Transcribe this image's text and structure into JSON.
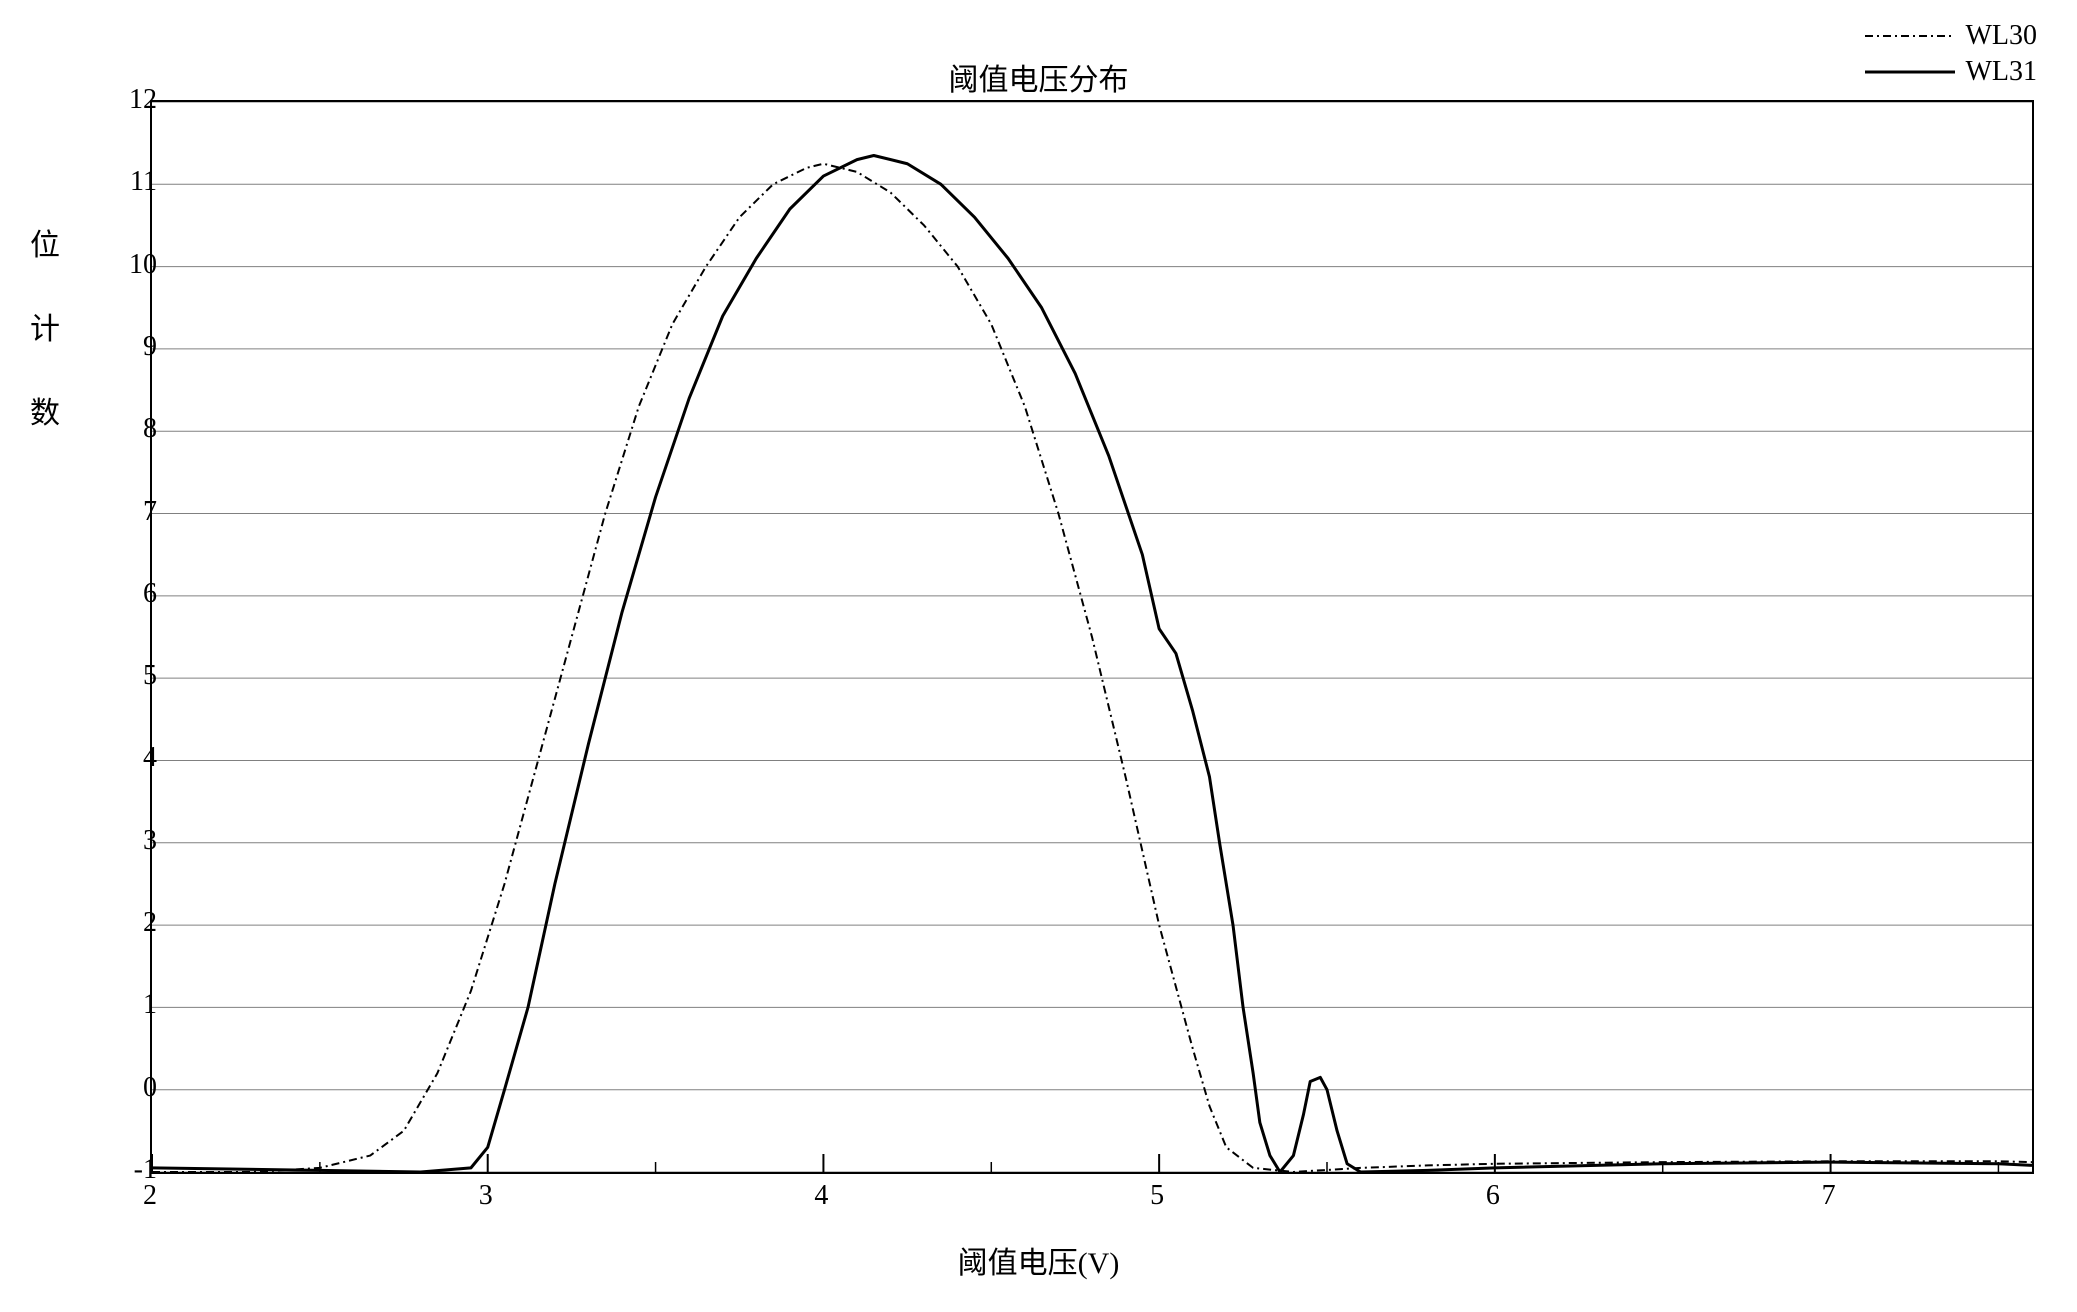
{
  "chart": {
    "type": "line",
    "title": "阈值电压分布",
    "xlabel": "阈值电压(V)",
    "ylabel_chars": [
      "位",
      "计",
      "数"
    ],
    "background_color": "#ffffff",
    "grid_color": "#808080",
    "border_color": "#000000",
    "title_fontsize": 30,
    "label_fontsize": 30,
    "tick_fontsize": 28,
    "xlim": [
      2,
      7.6
    ],
    "ylim": [
      -1,
      12
    ],
    "x_ticks": [
      2,
      3,
      4,
      5,
      6,
      7
    ],
    "y_ticks": [
      -1,
      0,
      1,
      2,
      3,
      4,
      5,
      6,
      7,
      8,
      9,
      10,
      11,
      12
    ],
    "x_minor_ticks": [
      2.5,
      3.5,
      4.5,
      5.5,
      6.5,
      7.5
    ],
    "series": [
      {
        "name": "WL30",
        "color": "#000000",
        "line_width": 2,
        "dash": "8 4 2 4",
        "data": [
          [
            2.0,
            -1.0
          ],
          [
            2.3,
            -1.0
          ],
          [
            2.5,
            -0.95
          ],
          [
            2.65,
            -0.8
          ],
          [
            2.75,
            -0.5
          ],
          [
            2.85,
            0.2
          ],
          [
            2.95,
            1.2
          ],
          [
            3.05,
            2.5
          ],
          [
            3.15,
            4.0
          ],
          [
            3.25,
            5.5
          ],
          [
            3.35,
            7.0
          ],
          [
            3.45,
            8.3
          ],
          [
            3.55,
            9.3
          ],
          [
            3.65,
            10.0
          ],
          [
            3.75,
            10.6
          ],
          [
            3.85,
            11.0
          ],
          [
            3.95,
            11.2
          ],
          [
            4.0,
            11.25
          ],
          [
            4.1,
            11.15
          ],
          [
            4.2,
            10.9
          ],
          [
            4.3,
            10.5
          ],
          [
            4.4,
            10.0
          ],
          [
            4.5,
            9.3
          ],
          [
            4.6,
            8.3
          ],
          [
            4.7,
            7.0
          ],
          [
            4.8,
            5.5
          ],
          [
            4.9,
            3.8
          ],
          [
            5.0,
            2.0
          ],
          [
            5.1,
            0.5
          ],
          [
            5.15,
            -0.2
          ],
          [
            5.2,
            -0.7
          ],
          [
            5.28,
            -0.95
          ],
          [
            5.4,
            -1.0
          ],
          [
            5.6,
            -0.95
          ],
          [
            5.8,
            -0.92
          ],
          [
            6.0,
            -0.9
          ],
          [
            6.5,
            -0.88
          ],
          [
            7.0,
            -0.87
          ],
          [
            7.5,
            -0.87
          ],
          [
            7.6,
            -0.88
          ]
        ]
      },
      {
        "name": "WL31",
        "color": "#000000",
        "line_width": 3,
        "dash": "none",
        "data": [
          [
            2.0,
            -0.95
          ],
          [
            2.5,
            -0.98
          ],
          [
            2.8,
            -1.0
          ],
          [
            2.95,
            -0.95
          ],
          [
            3.0,
            -0.7
          ],
          [
            3.05,
            0.0
          ],
          [
            3.12,
            1.0
          ],
          [
            3.2,
            2.5
          ],
          [
            3.3,
            4.2
          ],
          [
            3.4,
            5.8
          ],
          [
            3.5,
            7.2
          ],
          [
            3.6,
            8.4
          ],
          [
            3.7,
            9.4
          ],
          [
            3.8,
            10.1
          ],
          [
            3.9,
            10.7
          ],
          [
            4.0,
            11.1
          ],
          [
            4.1,
            11.3
          ],
          [
            4.15,
            11.35
          ],
          [
            4.25,
            11.25
          ],
          [
            4.35,
            11.0
          ],
          [
            4.45,
            10.6
          ],
          [
            4.55,
            10.1
          ],
          [
            4.65,
            9.5
          ],
          [
            4.75,
            8.7
          ],
          [
            4.85,
            7.7
          ],
          [
            4.95,
            6.5
          ],
          [
            5.0,
            5.6
          ],
          [
            5.05,
            5.3
          ],
          [
            5.1,
            4.6
          ],
          [
            5.15,
            3.8
          ],
          [
            5.18,
            3.0
          ],
          [
            5.22,
            2.0
          ],
          [
            5.25,
            1.0
          ],
          [
            5.28,
            0.2
          ],
          [
            5.3,
            -0.4
          ],
          [
            5.33,
            -0.8
          ],
          [
            5.36,
            -1.0
          ],
          [
            5.4,
            -0.8
          ],
          [
            5.43,
            -0.3
          ],
          [
            5.45,
            0.1
          ],
          [
            5.48,
            0.15
          ],
          [
            5.5,
            0.0
          ],
          [
            5.53,
            -0.5
          ],
          [
            5.56,
            -0.9
          ],
          [
            5.6,
            -1.0
          ],
          [
            5.8,
            -0.98
          ],
          [
            6.0,
            -0.95
          ],
          [
            6.5,
            -0.9
          ],
          [
            7.0,
            -0.88
          ],
          [
            7.5,
            -0.9
          ],
          [
            7.6,
            -0.92
          ]
        ]
      }
    ],
    "legend": {
      "position": "top-right",
      "items": [
        {
          "label": "WL30",
          "dash": "8 4 2 4",
          "color": "#000000",
          "width": 2
        },
        {
          "label": "WL31",
          "dash": "none",
          "color": "#000000",
          "width": 3
        }
      ]
    }
  }
}
